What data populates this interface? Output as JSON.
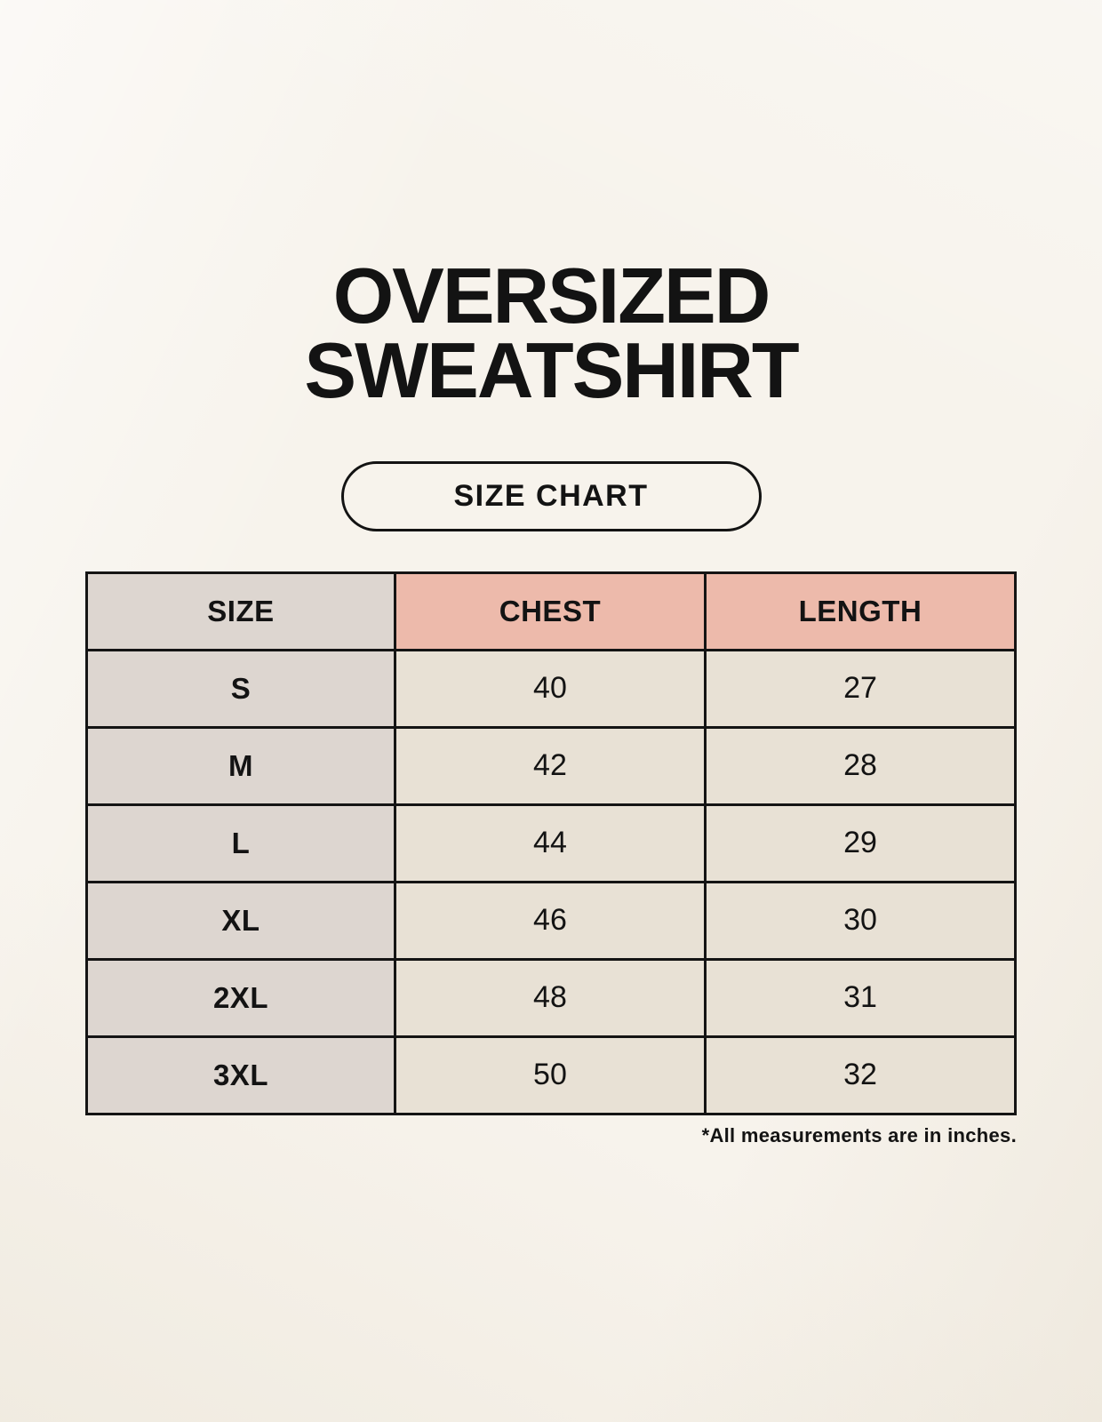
{
  "title": {
    "line1": "OVERSIZED",
    "line2": "SWEATSHIRT"
  },
  "size_chart_button": {
    "label": "SIZE CHART"
  },
  "table": {
    "headers": {
      "size": "SIZE",
      "chest": "CHEST",
      "length": "LENGTH"
    },
    "rows": [
      {
        "size": "S",
        "chest": "40",
        "length": "27"
      },
      {
        "size": "M",
        "chest": "42",
        "length": "28"
      },
      {
        "size": "L",
        "chest": "44",
        "length": "29"
      },
      {
        "size": "XL",
        "chest": "46",
        "length": "30"
      },
      {
        "size": "2XL",
        "chest": "48",
        "length": "31"
      },
      {
        "size": "3XL",
        "chest": "50",
        "length": "32"
      }
    ]
  },
  "footnote": "*All measurements are in inches.",
  "colors": {
    "background": "#f7f3ec",
    "header_accent": "#edbaab",
    "size_column": "#ddd6d0",
    "value_cell": "#e8e1d5",
    "border": "#141414",
    "text": "#131313"
  },
  "chart_data": {
    "type": "table",
    "title": "OVERSIZED SWEATSHIRT",
    "subtitle": "SIZE CHART",
    "columns": [
      "SIZE",
      "CHEST",
      "LENGTH"
    ],
    "rows": [
      [
        "S",
        40,
        27
      ],
      [
        "M",
        42,
        28
      ],
      [
        "L",
        44,
        29
      ],
      [
        "XL",
        46,
        30
      ],
      [
        "2XL",
        48,
        31
      ],
      [
        "3XL",
        50,
        32
      ]
    ],
    "units": "inches",
    "notes": "*All measurements are in inches."
  }
}
